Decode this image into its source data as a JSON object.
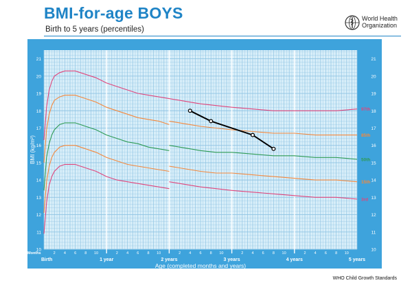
{
  "header": {
    "title": "BMI-for-age BOYS",
    "subtitle": "Birth to 5 years (percentiles)",
    "org_name": "World Health\nOrganization"
  },
  "footer": {
    "text": "WHO Child Growth Standards"
  },
  "colors": {
    "panel": "#3ea3dc",
    "plot_bg": "#d8eef9",
    "grid": "#8fc4e3",
    "p97": "#e0457b",
    "p85": "#f5883c",
    "p50": "#2d9a54",
    "p15": "#f5883c",
    "p3": "#e0457b",
    "child": "#000000",
    "axis_text": "#ffffff"
  },
  "chart_data": {
    "type": "line",
    "title": "BMI-for-age BOYS",
    "subtitle": "Birth to 5 years (percentiles)",
    "xlabel": "Age (completed months and years)",
    "ylabel": "BMI (kg/m²)",
    "xunit_label": "Months",
    "xlim": [
      0,
      60
    ],
    "ylim": [
      10,
      21.5
    ],
    "y_ticks": [
      10,
      11,
      12,
      13,
      14,
      15,
      16,
      17,
      18,
      19,
      20,
      21
    ],
    "x_month_labels": [
      {
        "m": 2,
        "t": "2"
      },
      {
        "m": 4,
        "t": "4"
      },
      {
        "m": 6,
        "t": "6"
      },
      {
        "m": 8,
        "t": "8"
      },
      {
        "m": 10,
        "t": "10"
      },
      {
        "m": 14,
        "t": "2"
      },
      {
        "m": 16,
        "t": "4"
      },
      {
        "m": 18,
        "t": "6"
      },
      {
        "m": 20,
        "t": "8"
      },
      {
        "m": 22,
        "t": "10"
      },
      {
        "m": 26,
        "t": "2"
      },
      {
        "m": 28,
        "t": "4"
      },
      {
        "m": 30,
        "t": "6"
      },
      {
        "m": 32,
        "t": "8"
      },
      {
        "m": 34,
        "t": "10"
      },
      {
        "m": 38,
        "t": "2"
      },
      {
        "m": 40,
        "t": "4"
      },
      {
        "m": 42,
        "t": "6"
      },
      {
        "m": 44,
        "t": "8"
      },
      {
        "m": 46,
        "t": "10"
      },
      {
        "m": 50,
        "t": "2"
      },
      {
        "m": 52,
        "t": "4"
      },
      {
        "m": 54,
        "t": "6"
      },
      {
        "m": 56,
        "t": "8"
      },
      {
        "m": 58,
        "t": "10"
      }
    ],
    "x_year_labels": [
      {
        "m": 0,
        "t": "Birth"
      },
      {
        "m": 12,
        "t": "1 year"
      },
      {
        "m": 24,
        "t": "2 years"
      },
      {
        "m": 36,
        "t": "3 years"
      },
      {
        "m": 48,
        "t": "4 years"
      },
      {
        "m": 60,
        "t": "5 years"
      }
    ],
    "grid": true,
    "series": [
      {
        "name": "97th",
        "color_key": "p97",
        "segments": [
          {
            "x": [
              0,
              0.5,
              1,
              1.5,
              2,
              3,
              4,
              5,
              6,
              7,
              8,
              9,
              10,
              12,
              14,
              16,
              18,
              20,
              22,
              24
            ],
            "y": [
              16.3,
              18.2,
              19.2,
              19.7,
              20.0,
              20.2,
              20.3,
              20.3,
              20.3,
              20.2,
              20.1,
              20.0,
              19.9,
              19.6,
              19.4,
              19.2,
              19.0,
              18.9,
              18.8,
              18.7
            ]
          },
          {
            "x": [
              24,
              26,
              28,
              30,
              33,
              36,
              40,
              44,
              48,
              52,
              56,
              60
            ],
            "y": [
              18.7,
              18.6,
              18.5,
              18.4,
              18.3,
              18.2,
              18.1,
              18.0,
              18.0,
              18.0,
              18.0,
              18.1
            ]
          }
        ]
      },
      {
        "name": "85th",
        "color_key": "p85",
        "segments": [
          {
            "x": [
              0,
              0.5,
              1,
              1.5,
              2,
              3,
              4,
              5,
              6,
              7,
              8,
              9,
              10,
              12,
              14,
              16,
              18,
              20,
              22,
              24
            ],
            "y": [
              15.0,
              16.9,
              17.8,
              18.3,
              18.6,
              18.8,
              18.9,
              18.9,
              18.9,
              18.8,
              18.7,
              18.6,
              18.5,
              18.2,
              18.0,
              17.8,
              17.6,
              17.5,
              17.4,
              17.2
            ]
          },
          {
            "x": [
              24,
              26,
              28,
              30,
              33,
              36,
              40,
              44,
              48,
              52,
              56,
              60
            ],
            "y": [
              17.4,
              17.3,
              17.2,
              17.1,
              17.0,
              16.9,
              16.8,
              16.7,
              16.7,
              16.6,
              16.6,
              16.6
            ]
          }
        ]
      },
      {
        "name": "50th",
        "color_key": "p50",
        "segments": [
          {
            "x": [
              0,
              0.5,
              1,
              1.5,
              2,
              3,
              4,
              5,
              6,
              7,
              8,
              9,
              10,
              12,
              14,
              16,
              18,
              20,
              22,
              24
            ],
            "y": [
              13.4,
              15.3,
              16.1,
              16.6,
              16.9,
              17.2,
              17.3,
              17.3,
              17.3,
              17.2,
              17.1,
              17.0,
              16.9,
              16.6,
              16.4,
              16.2,
              16.1,
              15.9,
              15.8,
              15.7
            ]
          },
          {
            "x": [
              24,
              26,
              28,
              30,
              33,
              36,
              40,
              44,
              48,
              52,
              56,
              60
            ],
            "y": [
              16.0,
              15.9,
              15.8,
              15.7,
              15.6,
              15.6,
              15.5,
              15.4,
              15.4,
              15.3,
              15.3,
              15.2
            ]
          }
        ]
      },
      {
        "name": "15th",
        "color_key": "p15",
        "segments": [
          {
            "x": [
              0,
              0.5,
              1,
              1.5,
              2,
              3,
              4,
              5,
              6,
              7,
              8,
              9,
              10,
              12,
              14,
              16,
              18,
              20,
              22,
              24
            ],
            "y": [
              12.1,
              13.9,
              14.8,
              15.3,
              15.6,
              15.9,
              16.0,
              16.0,
              16.0,
              15.9,
              15.8,
              15.7,
              15.6,
              15.3,
              15.1,
              14.9,
              14.8,
              14.7,
              14.6,
              14.5
            ]
          },
          {
            "x": [
              24,
              26,
              28,
              30,
              33,
              36,
              40,
              44,
              48,
              52,
              56,
              60
            ],
            "y": [
              14.8,
              14.7,
              14.6,
              14.5,
              14.4,
              14.4,
              14.3,
              14.2,
              14.1,
              14.0,
              14.0,
              13.9
            ]
          }
        ]
      },
      {
        "name": "3rd",
        "color_key": "p3",
        "segments": [
          {
            "x": [
              0,
              0.5,
              1,
              1.5,
              2,
              3,
              4,
              5,
              6,
              7,
              8,
              9,
              10,
              12,
              14,
              16,
              18,
              20,
              22,
              24
            ],
            "y": [
              10.9,
              12.7,
              13.7,
              14.2,
              14.5,
              14.8,
              14.9,
              14.9,
              14.9,
              14.8,
              14.7,
              14.6,
              14.5,
              14.2,
              14.0,
              13.9,
              13.8,
              13.7,
              13.6,
              13.5
            ]
          },
          {
            "x": [
              24,
              26,
              28,
              30,
              33,
              36,
              40,
              44,
              48,
              52,
              56,
              60
            ],
            "y": [
              13.9,
              13.8,
              13.7,
              13.6,
              13.5,
              13.4,
              13.3,
              13.2,
              13.1,
              13.0,
              13.0,
              12.9
            ]
          }
        ]
      }
    ],
    "child_series": {
      "x": [
        28,
        32,
        40,
        44
      ],
      "y": [
        18.0,
        17.4,
        16.6,
        15.8
      ]
    }
  }
}
